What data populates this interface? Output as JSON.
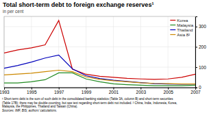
{
  "chart_data": {
    "type": "line",
    "title": "Total short-term debt to foreign exchange reserves¹",
    "subtitle": "in per cent",
    "footnotes": [
      "¹ Short-term debt is the sum of such debt in the consolidated banking statistics (Table 3A, column B) and short-term securities",
      "(Table 17B); there may be double-counting, but see text regarding short-term debt not included.  ² China, India, Indonesia, Korea,",
      "Malaysia, the Philippines, Thailand and Taiwan (China).",
      "Sources: IMF, BIS; authors' calculations."
    ],
    "x": [
      1993,
      1994,
      1995,
      1996,
      1997,
      1998,
      1999,
      2000,
      2001,
      2002,
      2003,
      2004,
      2005,
      2006,
      2007
    ],
    "series": [
      {
        "name": "Korea",
        "color": "#cc0000",
        "values": [
          170,
          185,
          195,
          210,
          330,
          90,
          65,
          55,
          50,
          45,
          42,
          40,
          42,
          50,
          65
        ]
      },
      {
        "name": "Malaysia",
        "color": "#228B22",
        "values": [
          22,
          22,
          28,
          38,
          72,
          72,
          42,
          28,
          18,
          14,
          11,
          9,
          9,
          9,
          11
        ]
      },
      {
        "name": "Thailand",
        "color": "#0000bb",
        "values": [
          95,
          108,
          125,
          145,
          160,
          92,
          58,
          44,
          36,
          30,
          24,
          19,
          17,
          16,
          17
        ]
      },
      {
        "name": "Asia 8²",
        "color": "#cc8800",
        "values": [
          62,
          66,
          70,
          78,
          85,
          78,
          52,
          40,
          33,
          28,
          23,
          20,
          19,
          17,
          17
        ]
      }
    ],
    "xlim": [
      1993,
      2007
    ],
    "xticks": [
      1993,
      1995,
      1997,
      1999,
      2001,
      2003,
      2005,
      2007
    ],
    "ylim": [
      0,
      350
    ],
    "yticks": [
      0,
      100,
      200,
      300
    ],
    "grid": true,
    "legend": "upper-right"
  }
}
